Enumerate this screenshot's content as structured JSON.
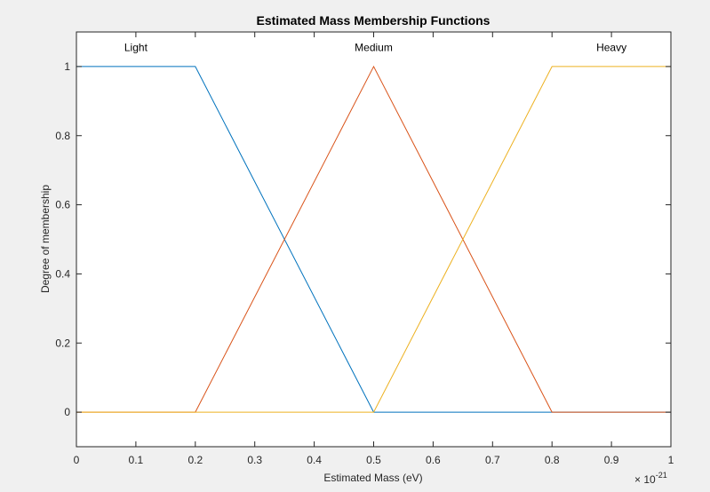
{
  "chart_data": {
    "type": "line",
    "title": "Estimated Mass Membership Functions",
    "xlabel": "Estimated Mass (eV)",
    "ylabel": "Degree of membership",
    "x_multiplier_base": "× 10",
    "x_multiplier_exponent": "-21",
    "xlim": [
      0,
      1
    ],
    "ylim": [
      -0.1,
      1.1
    ],
    "xticks": [
      0,
      0.1,
      0.2,
      0.3,
      0.4,
      0.5,
      0.6,
      0.7,
      0.8,
      0.9,
      1
    ],
    "xtick_labels": [
      "0",
      "0.1",
      "0.2",
      "0.3",
      "0.4",
      "0.5",
      "0.6",
      "0.7",
      "0.8",
      "0.9",
      "1"
    ],
    "yticks": [
      0,
      0.2,
      0.4,
      0.6,
      0.8,
      1
    ],
    "ytick_labels": [
      "0",
      "0.2",
      "0.4",
      "0.6",
      "0.8",
      "1"
    ],
    "grid": false,
    "series": [
      {
        "name": "Light",
        "color": "#0072BD",
        "label_x": 0.1,
        "label_y": 1.045,
        "x": [
          0,
          0.2,
          0.5,
          1
        ],
        "y": [
          1,
          1,
          0,
          0
        ]
      },
      {
        "name": "Medium",
        "color": "#D95319",
        "label_x": 0.5,
        "label_y": 1.045,
        "x": [
          0,
          0.2,
          0.5,
          0.8,
          1
        ],
        "y": [
          0,
          0,
          1,
          0,
          0
        ]
      },
      {
        "name": "Heavy",
        "color": "#EDB120",
        "label_x": 0.9,
        "label_y": 1.045,
        "x": [
          0,
          0.5,
          0.8,
          1
        ],
        "y": [
          0,
          0,
          1,
          1
        ]
      }
    ]
  }
}
